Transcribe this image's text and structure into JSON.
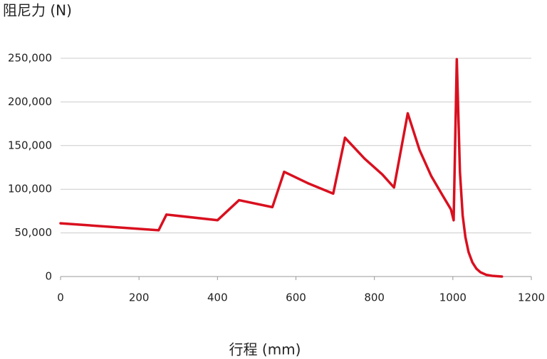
{
  "chart_data": {
    "type": "line",
    "y_label": "阻尼力 (N)",
    "x_label": "行程 (mm)",
    "x": [
      0,
      250,
      270,
      400,
      455,
      540,
      570,
      630,
      695,
      725,
      775,
      820,
      850,
      885,
      915,
      945,
      975,
      995,
      1002,
      1010,
      1018,
      1025,
      1032,
      1040,
      1050,
      1060,
      1070,
      1085,
      1100,
      1125
    ],
    "series": [
      {
        "name": "阻尼力",
        "color": "#d9101f",
        "values": [
          61000,
          53000,
          71000,
          64500,
          87500,
          79500,
          120000,
          107000,
          95000,
          159000,
          135000,
          117000,
          102000,
          187000,
          145000,
          115000,
          92000,
          77000,
          64500,
          249000,
          120000,
          70000,
          45000,
          28000,
          16000,
          9000,
          5000,
          2000,
          800,
          0
        ]
      }
    ],
    "xlim": [
      0,
      1200
    ],
    "xticks": [
      0,
      200,
      400,
      600,
      800,
      1000,
      1200
    ],
    "ylim": [
      0,
      250000
    ],
    "yticks": [
      0,
      {
        "value": 50000,
        "label": "50,000"
      },
      {
        "value": 100000,
        "label": "100,000"
      },
      {
        "value": 150000,
        "label": "150,000"
      },
      {
        "value": 200000,
        "label": "200,000"
      },
      {
        "value": 250000,
        "label": "250,000"
      }
    ],
    "grid": true
  }
}
